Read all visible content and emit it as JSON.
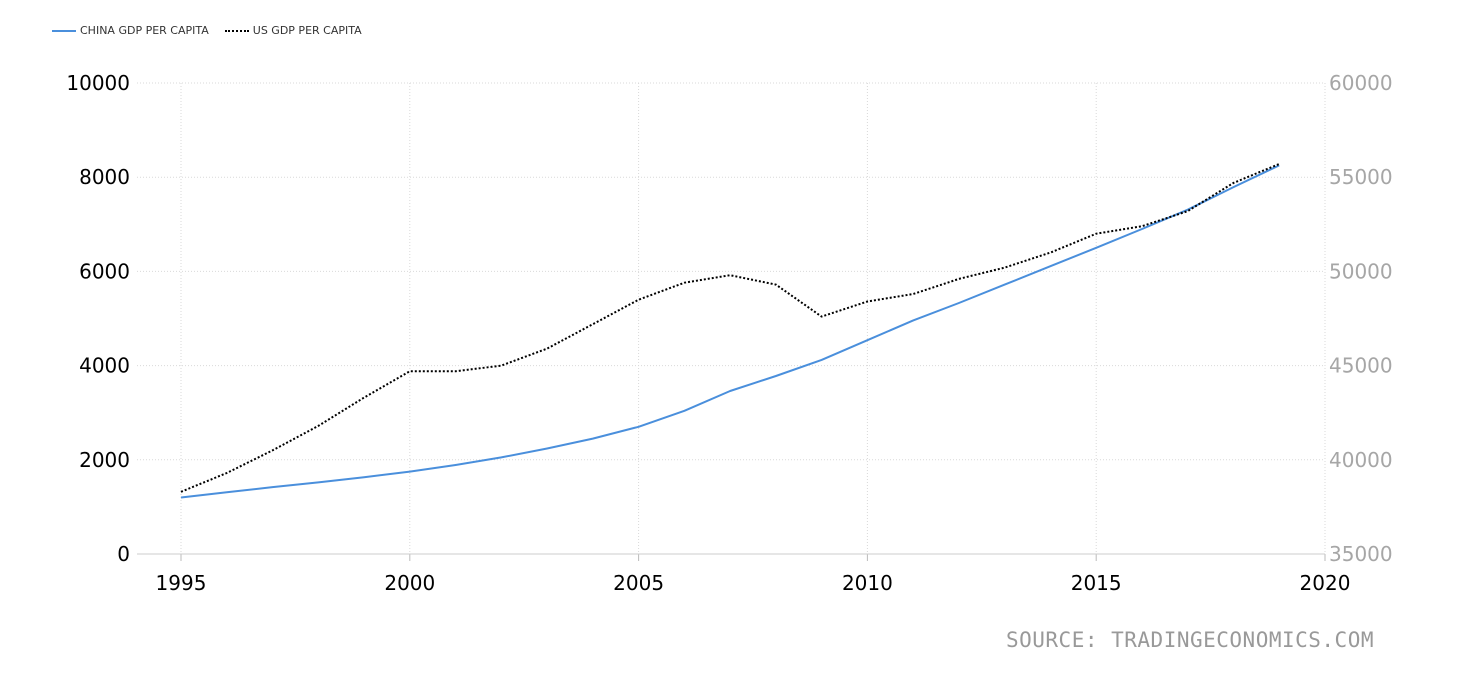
{
  "chart_data": {
    "type": "line",
    "title": "",
    "xlabel": "",
    "ylabel": "",
    "legend_position": "top-left",
    "grid": true,
    "x": [
      1995,
      1996,
      1997,
      1998,
      1999,
      2000,
      2001,
      2002,
      2003,
      2004,
      2005,
      2006,
      2007,
      2008,
      2009,
      2010,
      2011,
      2012,
      2013,
      2014,
      2015,
      2016,
      2017,
      2018,
      2019
    ],
    "xlim": [
      1995,
      2020
    ],
    "x_ticks": [
      "1995",
      "2000",
      "2005",
      "2010",
      "2015",
      "2020"
    ],
    "y_left": {
      "lim": [
        0,
        10000
      ],
      "ticks": [
        "0",
        "2000",
        "4000",
        "6000",
        "8000",
        "10000"
      ]
    },
    "y_right": {
      "lim": [
        35000,
        60000
      ],
      "ticks": [
        "35000",
        "40000",
        "45000",
        "50000",
        "55000",
        "60000"
      ]
    },
    "series": [
      {
        "name": "CHINA GDP PER CAPITA",
        "axis": "left",
        "style": "solid",
        "color": "#4a8fdc",
        "values": [
          1200,
          1310,
          1420,
          1520,
          1630,
          1750,
          1890,
          2050,
          2240,
          2450,
          2700,
          3040,
          3460,
          3780,
          4120,
          4540,
          4960,
          5330,
          5720,
          6110,
          6500,
          6900,
          7310,
          7790,
          8250
        ]
      },
      {
        "name": "US GDP PER CAPITA",
        "axis": "right",
        "style": "dotted",
        "color": "#000000",
        "values": [
          38300,
          39300,
          40500,
          41800,
          43300,
          44700,
          44700,
          45000,
          45900,
          47200,
          48500,
          49400,
          49800,
          49300,
          47600,
          48400,
          48800,
          49600,
          50200,
          51000,
          52000,
          52400,
          53200,
          54700,
          55700
        ]
      }
    ]
  },
  "legend": {
    "items": [
      {
        "label": "CHINA GDP PER CAPITA"
      },
      {
        "label": "US GDP PER CAPITA"
      }
    ]
  },
  "source": "SOURCE: TRADINGECONOMICS.COM",
  "colors": {
    "china": "#4a8fdc",
    "us": "#000000",
    "grid": "#d9d9d9",
    "right_axis": "#a6a6a6",
    "source": "#999999"
  }
}
